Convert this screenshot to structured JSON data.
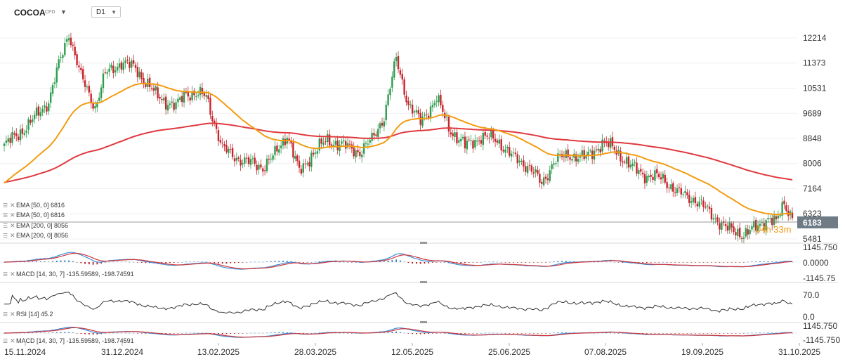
{
  "header": {
    "symbol": "COCOA",
    "instrument_type": "CFD",
    "timeframe": "D1"
  },
  "price_badge": {
    "value": "6183",
    "countdown": "04h 33m"
  },
  "legends": {
    "main": [
      {
        "text": "EMA [50, 0] 6816",
        "color": "#f39c12"
      },
      {
        "text": "EMA [50, 0] 6816",
        "color": "#f39c12"
      },
      {
        "text": "EMA [200, 0] 8056",
        "color": "#e0393e"
      },
      {
        "text": "EMA [200, 0] 8056",
        "color": "#e0393e"
      }
    ],
    "macd1": "MACD [14, 30, 7] -135.59589,  -198.74591",
    "rsi": "RSI [14] 45.2",
    "macd2": "MACD [14, 30, 7] -135.59589,  -198.74591"
  },
  "price_axis_labels": [
    "12214",
    "11373",
    "10531",
    "9689",
    "8848",
    "8006",
    "7164",
    "6323",
    "5481"
  ],
  "macd_axis_labels": [
    "1145.750",
    "0.0000",
    "-1145.75"
  ],
  "rsi_axis_labels": [
    "70.0",
    "0.0"
  ],
  "macd2_axis_labels": [
    "1145.750",
    "-1145.750"
  ],
  "x_axis_labels": [
    "15.11.2024",
    "31.12.2024",
    "13.02.2025",
    "28.03.2025",
    "12.05.2025",
    "25.06.2025",
    "07.08.2025",
    "19.09.2025",
    "31.10.2025"
  ],
  "colors": {
    "up": "#2e9c4f",
    "down": "#c8242c",
    "ema50": "#f39c12",
    "ema200": "#e0393e",
    "macd": "#3a8fd9",
    "signal": "#d0343a",
    "rsi": "#333333",
    "badge": "#6f7b85",
    "countdown": "#f39c12"
  },
  "chart_data": {
    "type": "line",
    "title": "COCOA",
    "xlabel": "",
    "ylabel": "",
    "x": [
      "15.11.2024",
      "31.12.2024",
      "13.02.2025",
      "28.03.2025",
      "12.05.2025",
      "25.06.2025",
      "07.08.2025",
      "19.09.2025",
      "31.10.2025"
    ],
    "ylim": [
      5481,
      12214
    ],
    "series": [
      {
        "name": "COCOA",
        "values": [
          8600,
          10500,
          9300,
          8000,
          10300,
          8700,
          8900,
          6900,
          6183
        ]
      },
      {
        "name": "EMA [50, 0]",
        "values": [
          7400,
          9600,
          10300,
          9400,
          9600,
          9400,
          8650,
          7900,
          6816
        ]
      },
      {
        "name": "EMA [200, 0]",
        "values": [
          7360,
          8000,
          8870,
          8830,
          9050,
          9100,
          9000,
          8650,
          8056
        ]
      }
    ],
    "macd": {
      "macd": -135.59589,
      "signal": -198.74591
    },
    "rsi": 45.2
  }
}
